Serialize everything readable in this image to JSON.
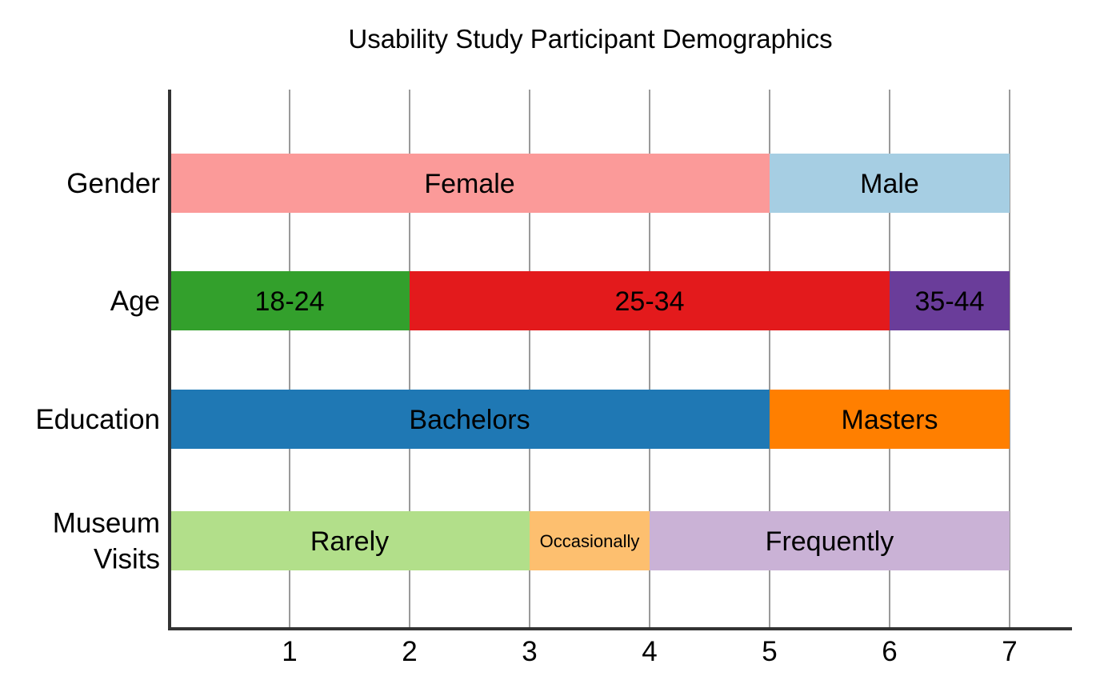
{
  "chart_data": {
    "type": "bar",
    "orientation": "horizontal",
    "stacked": true,
    "title": "Usability Study Participant Demographics",
    "xlabel": "",
    "ylabel": "",
    "xlim": [
      0,
      7
    ],
    "xticks": [
      1,
      2,
      3,
      4,
      5,
      6,
      7
    ],
    "grid": "vertical",
    "categories": [
      {
        "label": [
          "Gender"
        ],
        "segments": [
          {
            "name": "Female",
            "value": 5,
            "color": "#fb9a99"
          },
          {
            "name": "Male",
            "value": 2,
            "color": "#a6cee3"
          }
        ]
      },
      {
        "label": [
          "Age"
        ],
        "segments": [
          {
            "name": "18-24",
            "value": 2,
            "color": "#33a02c"
          },
          {
            "name": "25-34",
            "value": 4,
            "color": "#e31a1c"
          },
          {
            "name": "35-44",
            "value": 1,
            "color": "#6a3d9a"
          }
        ]
      },
      {
        "label": [
          "Education"
        ],
        "segments": [
          {
            "name": "Bachelors",
            "value": 5,
            "color": "#1f78b4"
          },
          {
            "name": "Masters",
            "value": 2,
            "color": "#ff7f00"
          }
        ]
      },
      {
        "label": [
          "Museum",
          "Visits"
        ],
        "segments": [
          {
            "name": "Rarely",
            "value": 3,
            "color": "#b2df8a"
          },
          {
            "name": "Occasionally",
            "value": 1,
            "color": "#fdbf6f",
            "small": true
          },
          {
            "name": "Frequently",
            "value": 3,
            "color": "#cab2d6"
          }
        ]
      }
    ]
  }
}
